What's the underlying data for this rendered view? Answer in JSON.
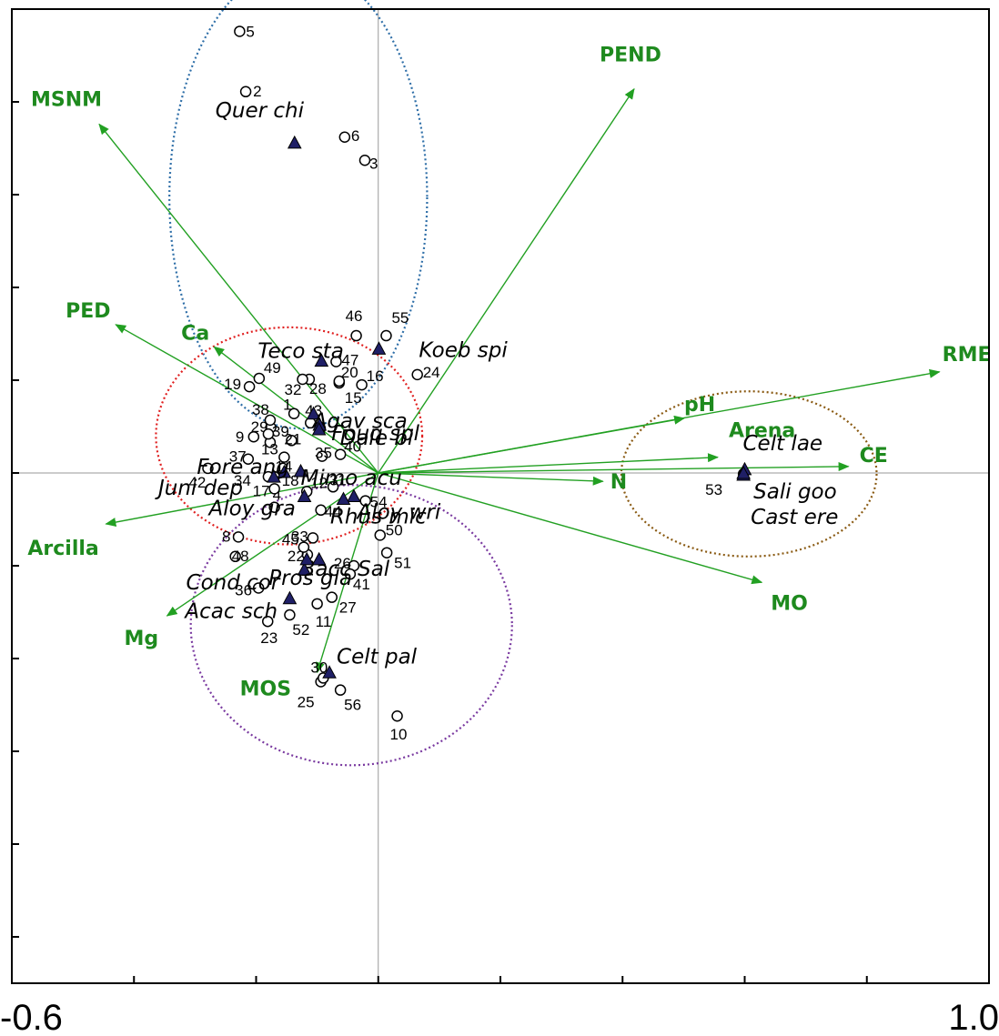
{
  "chart_data": {
    "type": "scatter",
    "title": "",
    "xlabel": "",
    "ylabel": "",
    "xlim": [
      -0.6,
      1.0
    ],
    "ylim": [
      -0.55,
      0.5
    ],
    "grid": false,
    "x_tick_labels": [
      "-0.6",
      "1.0"
    ],
    "colors": {
      "arrows": "#22a022",
      "env_label": "#1e8a1e",
      "species_fill": "#1f1f66",
      "ellipse_blue": "#2f6fa8",
      "ellipse_red": "#e02020",
      "ellipse_purple": "#7a3aa0",
      "ellipse_brown": "#8a5a12",
      "axis": "#000000",
      "zero_line": "#999999"
    },
    "env_vectors": [
      {
        "name": "MSNM",
        "x": -0.457,
        "y": 0.376
      },
      {
        "name": "PEND",
        "x": 0.419,
        "y": 0.414
      },
      {
        "name": "PED",
        "x": -0.43,
        "y": 0.16
      },
      {
        "name": "Ca",
        "x": -0.269,
        "y": 0.136
      },
      {
        "name": "RME",
        "x": 0.919,
        "y": 0.109
      },
      {
        "name": "pH",
        "x": 0.501,
        "y": 0.059
      },
      {
        "name": "Arena",
        "x": 0.556,
        "y": 0.017
      },
      {
        "name": "CE",
        "x": 0.77,
        "y": 0.007
      },
      {
        "name": "N",
        "x": 0.368,
        "y": -0.009
      },
      {
        "name": "MO",
        "x": 0.628,
        "y": -0.118
      },
      {
        "name": "Arcilla",
        "x": -0.446,
        "y": -0.055
      },
      {
        "name": "Mg",
        "x": -0.346,
        "y": -0.154
      },
      {
        "name": "MOS",
        "x": -0.1,
        "y": -0.215
      }
    ],
    "species": [
      {
        "name": "Quer chi",
        "x": -0.137,
        "y": 0.356
      },
      {
        "name": "Teco sta",
        "x": -0.093,
        "y": 0.121
      },
      {
        "name": "Koeb spi",
        "x": 0.001,
        "y": 0.134
      },
      {
        "name": "Agav sca",
        "x": -0.106,
        "y": 0.064
      },
      {
        "name": "Fouq spl",
        "x": -0.096,
        "y": 0.052
      },
      {
        "name": "Dale bi",
        "x": -0.097,
        "y": 0.047
      },
      {
        "name": "Mimo acu",
        "x": -0.127,
        "y": 0.002
      },
      {
        "name": "Fore ang",
        "x": -0.154,
        "y": 0.001
      },
      {
        "name": "Juni dep",
        "x": -0.171,
        "y": -0.004
      },
      {
        "name": "Rhus mic",
        "x": -0.04,
        "y": -0.025
      },
      {
        "name": "Aloy gra",
        "x": -0.121,
        "y": -0.025
      },
      {
        "name": "Aloy wri",
        "x": -0.057,
        "y": -0.028
      },
      {
        "name": "Bacc Sal",
        "x": -0.097,
        "y": -0.093
      },
      {
        "name": "Cond cor",
        "x": -0.121,
        "y": -0.104
      },
      {
        "name": "Pros gla",
        "x": -0.117,
        "y": -0.093
      },
      {
        "name": "Acac sch",
        "x": -0.145,
        "y": -0.135
      },
      {
        "name": "Celt pal",
        "x": -0.08,
        "y": -0.215
      },
      {
        "name": "Celt lae",
        "x": 0.6,
        "y": 0.004
      },
      {
        "name": "Sali goo",
        "x": 0.598,
        "y": -0.002
      },
      {
        "name": "Cast ere",
        "x": 0.598,
        "y": 0.0
      }
    ],
    "sites": [
      {
        "name": "1",
        "x": -0.138,
        "y": 0.064
      },
      {
        "name": "2",
        "x": -0.217,
        "y": 0.411
      },
      {
        "name": "3",
        "x": -0.022,
        "y": 0.337
      },
      {
        "name": "4",
        "x": -0.17,
        "y": -0.037
      },
      {
        "name": "5",
        "x": -0.227,
        "y": 0.476
      },
      {
        "name": "6",
        "x": -0.055,
        "y": 0.362
      },
      {
        "name": "7",
        "x": -0.095,
        "y": 0.048
      },
      {
        "name": "8",
        "x": -0.229,
        "y": -0.069
      },
      {
        "name": "9",
        "x": -0.204,
        "y": 0.039
      },
      {
        "name": "10",
        "x": 0.031,
        "y": -0.262
      },
      {
        "name": "11",
        "x": -0.1,
        "y": -0.141
      },
      {
        "name": "12",
        "x": -0.117,
        "y": -0.02
      },
      {
        "name": "13",
        "x": -0.177,
        "y": 0.033
      },
      {
        "name": "14",
        "x": -0.154,
        "y": 0.017
      },
      {
        "name": "15",
        "x": -0.064,
        "y": 0.097
      },
      {
        "name": "16",
        "x": -0.027,
        "y": 0.095
      },
      {
        "name": "17",
        "x": -0.17,
        "y": -0.017
      },
      {
        "name": "18",
        "x": -0.17,
        "y": -0.004
      },
      {
        "name": "19",
        "x": -0.211,
        "y": 0.093
      },
      {
        "name": "20",
        "x": -0.064,
        "y": 0.099
      },
      {
        "name": "21",
        "x": -0.142,
        "y": 0.035
      },
      {
        "name": "22",
        "x": -0.116,
        "y": -0.088
      },
      {
        "name": "23",
        "x": -0.181,
        "y": -0.16
      },
      {
        "name": "24",
        "x": 0.064,
        "y": 0.106
      },
      {
        "name": "25",
        "x": -0.094,
        "y": -0.225
      },
      {
        "name": "26",
        "x": -0.04,
        "y": -0.1
      },
      {
        "name": "27",
        "x": -0.076,
        "y": -0.134
      },
      {
        "name": "28",
        "x": -0.113,
        "y": 0.101
      },
      {
        "name": "29",
        "x": -0.176,
        "y": 0.049
      },
      {
        "name": "30",
        "x": -0.09,
        "y": -0.221
      },
      {
        "name": "31",
        "x": -0.074,
        "y": -0.015
      },
      {
        "name": "32",
        "x": -0.124,
        "y": 0.101
      },
      {
        "name": "33",
        "x": -0.107,
        "y": -0.07
      },
      {
        "name": "34",
        "x": -0.18,
        "y": -0.004
      },
      {
        "name": "35",
        "x": -0.092,
        "y": 0.018
      },
      {
        "name": "36",
        "x": -0.196,
        "y": -0.124
      },
      {
        "name": "37",
        "x": -0.213,
        "y": 0.015
      },
      {
        "name": "38",
        "x": -0.177,
        "y": 0.057
      },
      {
        "name": "39",
        "x": -0.18,
        "y": 0.042
      },
      {
        "name": "40",
        "x": -0.062,
        "y": 0.02
      },
      {
        "name": "41",
        "x": -0.046,
        "y": -0.109
      },
      {
        "name": "42",
        "x": -0.279,
        "y": 0.005
      },
      {
        "name": "43",
        "x": -0.111,
        "y": 0.054
      },
      {
        "name": "44",
        "x": -0.094,
        "y": -0.04
      },
      {
        "name": "45",
        "x": -0.122,
        "y": -0.08
      },
      {
        "name": "46",
        "x": -0.036,
        "y": 0.148
      },
      {
        "name": "47",
        "x": -0.069,
        "y": 0.12
      },
      {
        "name": "48",
        "x": -0.234,
        "y": -0.09
      },
      {
        "name": "49",
        "x": -0.195,
        "y": 0.102
      },
      {
        "name": "50",
        "x": 0.003,
        "y": -0.067
      },
      {
        "name": "51",
        "x": 0.014,
        "y": -0.086
      },
      {
        "name": "52",
        "x": -0.145,
        "y": -0.153
      },
      {
        "name": "53",
        "x": 0.598,
        "y": -0.001
      },
      {
        "name": "54",
        "x": -0.021,
        "y": -0.03
      },
      {
        "name": "55",
        "x": 0.013,
        "y": 0.148
      },
      {
        "name": "56",
        "x": -0.062,
        "y": -0.234
      }
    ],
    "ellipses": [
      {
        "color": "ellipse_blue",
        "cx": -0.131,
        "cy": 0.297,
        "rx": 0.211,
        "ry": 0.249
      },
      {
        "color": "ellipse_red",
        "cx": -0.146,
        "cy": 0.04,
        "rx": 0.218,
        "ry": 0.117
      },
      {
        "color": "ellipse_purple",
        "cx": -0.044,
        "cy": -0.164,
        "rx": 0.263,
        "ry": 0.151
      },
      {
        "color": "ellipse_brown",
        "cx": 0.607,
        "cy": -0.001,
        "rx": 0.209,
        "ry": 0.089
      }
    ]
  }
}
